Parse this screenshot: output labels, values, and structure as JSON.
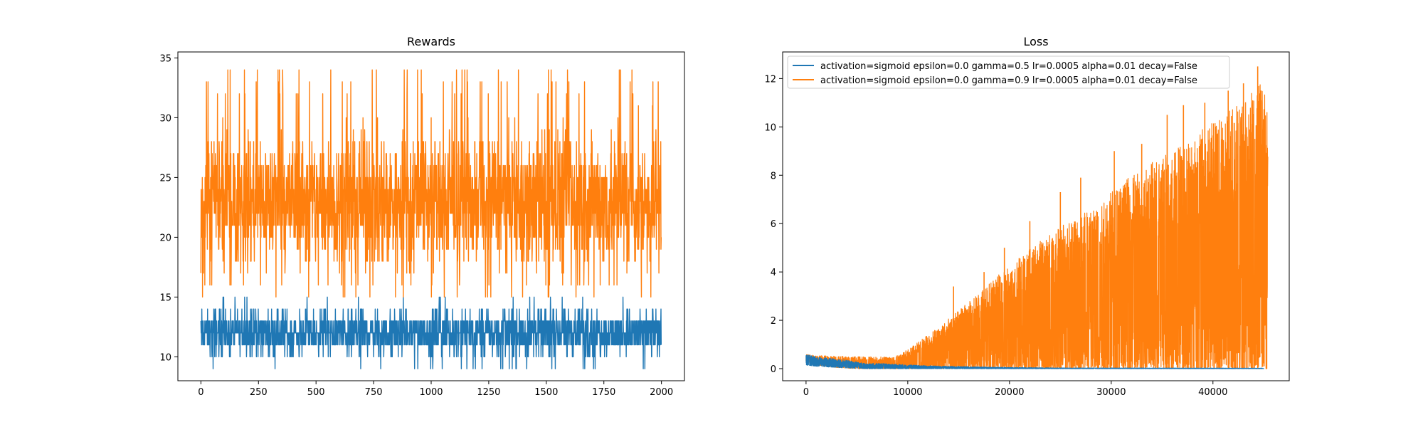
{
  "colors": {
    "series_0": "#1f77b4",
    "series_1": "#ff7f0e",
    "axes": "#000000",
    "background": "#ffffff"
  },
  "chart_data": [
    {
      "type": "line",
      "title": "Rewards",
      "xlabel": "",
      "ylabel": "",
      "xlim": [
        -100,
        2100
      ],
      "ylim": [
        8,
        35.5
      ],
      "xticks": [
        0,
        250,
        500,
        750,
        1000,
        1250,
        1500,
        1750,
        2000
      ],
      "yticks": [
        10,
        15,
        20,
        25,
        30,
        35
      ],
      "grid": false,
      "series": [
        {
          "color": "#1f77b4",
          "n_points": 2000,
          "y_min": 9,
          "y_max": 15,
          "typical_range": [
            10,
            14
          ],
          "mean": 11.8
        },
        {
          "color": "#ff7f0e",
          "n_points": 2000,
          "y_min": 15,
          "y_max": 34,
          "typical_range": [
            17,
            29
          ],
          "mean": 22.5
        }
      ]
    },
    {
      "type": "line",
      "title": "Loss",
      "xlabel": "",
      "ylabel": "",
      "xlim": [
        -2300,
        47500
      ],
      "ylim": [
        -0.5,
        13.1
      ],
      "xticks": [
        0,
        10000,
        20000,
        30000,
        40000
      ],
      "yticks": [
        0,
        2,
        4,
        6,
        8,
        10,
        12
      ],
      "grid": false,
      "legend": {
        "placement": "upper-left",
        "entries": [
          {
            "label": "activation=sigmoid epsilon=0.0 gamma=0.5 lr=0.0005 alpha=0.01 decay=False",
            "color": "#1f77b4"
          },
          {
            "label": "activation=sigmoid epsilon=0.0 gamma=0.9 lr=0.0005 alpha=0.01 decay=False",
            "color": "#ff7f0e"
          }
        ]
      },
      "series": [
        {
          "color": "#1f77b4",
          "x_max": 45000,
          "envelope_x": [
            0,
            1000,
            4000,
            6000,
            7000,
            9000,
            12000,
            16000,
            20000,
            25000,
            45000
          ],
          "envelope_upper": [
            0.6,
            0.5,
            0.35,
            0.2,
            0.22,
            0.18,
            0.12,
            0.08,
            0.05,
            0.03,
            0.02
          ],
          "envelope_lower": [
            0.15,
            0.1,
            0.03,
            0.0,
            0.0,
            0.0,
            0.0,
            0.0,
            0.0,
            0.0,
            0.0
          ]
        },
        {
          "color": "#ff7f0e",
          "x_max": 45400,
          "envelope_x": [
            0,
            1000,
            3000,
            5000,
            7000,
            8500,
            9500,
            10000,
            12000,
            15000,
            18000,
            20000,
            24000,
            28000,
            32000,
            36000,
            40000,
            42000,
            44000,
            45000,
            45400
          ],
          "envelope_upper": [
            0.6,
            0.55,
            0.52,
            0.5,
            0.48,
            0.5,
            0.65,
            0.8,
            1.4,
            2.4,
            3.5,
            4.3,
            5.6,
            6.8,
            8.0,
            9.1,
            10.2,
            10.8,
            11.5,
            12.0,
            10.5
          ],
          "envelope_lower": [
            0.3,
            0.15,
            0.05,
            0.0,
            0.0,
            0.0,
            0.0,
            0.0,
            0.0,
            0.0,
            0.0,
            0.0,
            0.0,
            0.0,
            0.0,
            0.0,
            0.0,
            0.0,
            0.0,
            0.0,
            0.0
          ],
          "peaks": [
            {
              "x": 44400,
              "y": 12.5
            },
            {
              "x": 43000,
              "y": 11.8
            },
            {
              "x": 41500,
              "y": 11.5
            },
            {
              "x": 39200,
              "y": 11.0
            },
            {
              "x": 37100,
              "y": 10.9
            },
            {
              "x": 35500,
              "y": 10.5
            },
            {
              "x": 33000,
              "y": 9.3
            },
            {
              "x": 30300,
              "y": 9.0
            },
            {
              "x": 27000,
              "y": 7.9
            },
            {
              "x": 25000,
              "y": 7.3
            },
            {
              "x": 22000,
              "y": 6.1
            },
            {
              "x": 19500,
              "y": 5.0
            },
            {
              "x": 17500,
              "y": 4.0
            },
            {
              "x": 14500,
              "y": 3.4
            }
          ]
        }
      ]
    }
  ]
}
